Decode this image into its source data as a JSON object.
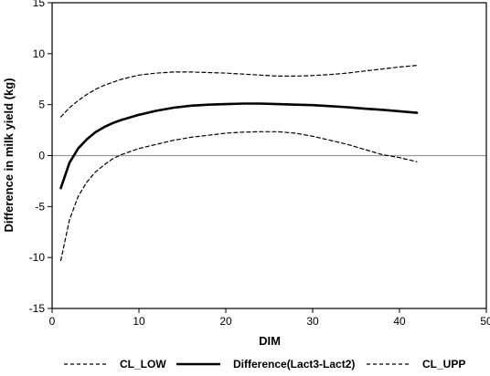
{
  "chart_data": {
    "type": "line",
    "title": "",
    "xlabel": "DIM",
    "ylabel": "Difference in milk yield (kg)",
    "xlim": [
      0,
      50
    ],
    "ylim": [
      -15,
      15
    ],
    "xticks": [
      0,
      10,
      20,
      30,
      40,
      50
    ],
    "yticks": [
      -15,
      -10,
      -5,
      0,
      5,
      10,
      15
    ],
    "grid": false,
    "reference_line": {
      "y": 0,
      "color": "#999999"
    },
    "legend_position": "bottom",
    "series": [
      {
        "name": "CL_LOW",
        "style": "dashed",
        "color": "#000000",
        "x": [
          1,
          2,
          3,
          4,
          5,
          6,
          7,
          8,
          10,
          12,
          14,
          16,
          18,
          20,
          22,
          24,
          26,
          28,
          30,
          32,
          34,
          36,
          38,
          40,
          42
        ],
        "y": [
          -10.3,
          -6.3,
          -4.0,
          -2.6,
          -1.6,
          -0.9,
          -0.3,
          0.1,
          0.7,
          1.1,
          1.5,
          1.8,
          2.0,
          2.2,
          2.3,
          2.35,
          2.35,
          2.2,
          1.9,
          1.5,
          1.1,
          0.6,
          0.1,
          -0.2,
          -0.6
        ]
      },
      {
        "name": "Difference(Lact3-Lact2)",
        "style": "solid",
        "color": "#000000",
        "x": [
          1,
          2,
          3,
          4,
          5,
          6,
          7,
          8,
          10,
          12,
          14,
          16,
          18,
          20,
          22,
          24,
          26,
          28,
          30,
          32,
          34,
          36,
          38,
          40,
          42
        ],
        "y": [
          -3.2,
          -0.7,
          0.7,
          1.6,
          2.3,
          2.8,
          3.2,
          3.5,
          4.0,
          4.4,
          4.7,
          4.9,
          5.0,
          5.05,
          5.1,
          5.1,
          5.05,
          5.0,
          4.95,
          4.85,
          4.75,
          4.6,
          4.5,
          4.35,
          4.2
        ]
      },
      {
        "name": "CL_UPP",
        "style": "dashed",
        "color": "#000000",
        "x": [
          1,
          2,
          3,
          4,
          5,
          6,
          7,
          8,
          10,
          12,
          14,
          16,
          18,
          20,
          22,
          24,
          26,
          28,
          30,
          32,
          34,
          36,
          38,
          40,
          42
        ],
        "y": [
          3.8,
          4.7,
          5.4,
          6.0,
          6.5,
          6.9,
          7.2,
          7.5,
          7.9,
          8.1,
          8.2,
          8.2,
          8.15,
          8.1,
          8.0,
          7.9,
          7.8,
          7.8,
          7.85,
          7.95,
          8.1,
          8.3,
          8.5,
          8.7,
          8.85
        ]
      }
    ]
  }
}
